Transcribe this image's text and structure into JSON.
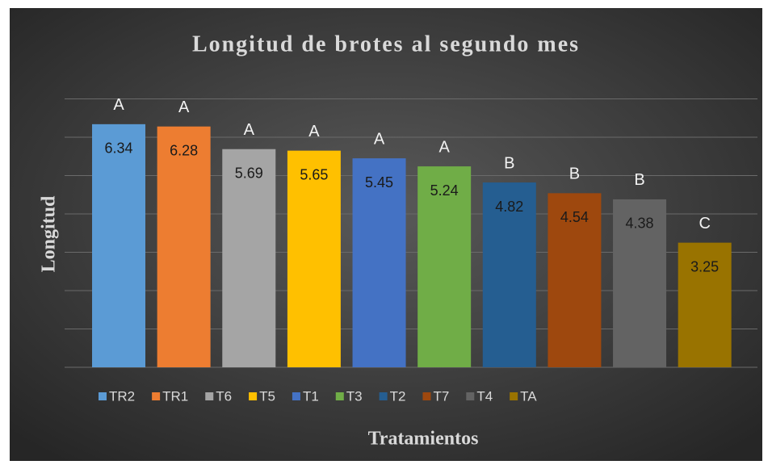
{
  "chart_data": {
    "type": "bar",
    "title": "Longitud de brotes al segundo mes",
    "y_label": "Longitud",
    "x_label": "Tratamientos",
    "categories": [
      "TR2",
      "TR1",
      "T6",
      "T5",
      "T1",
      "T3",
      "T2",
      "T7",
      "T4",
      "TA"
    ],
    "values": [
      6.34,
      6.28,
      5.69,
      5.65,
      5.45,
      5.24,
      4.82,
      4.54,
      4.38,
      3.25
    ],
    "group_labels": [
      "A",
      "A",
      "A",
      "A",
      "A",
      "A",
      "B",
      "B",
      "B",
      "C"
    ],
    "colors": [
      "#5b9bd5",
      "#ed7d31",
      "#a5a5a5",
      "#ffc000",
      "#4472c4",
      "#70ad47",
      "#255e91",
      "#9e480e",
      "#636363",
      "#997300"
    ],
    "ylim": [
      0,
      7
    ],
    "yticks": [
      0,
      1,
      2,
      3,
      4,
      5,
      6,
      7
    ],
    "grid": true,
    "legend": "bottom"
  }
}
